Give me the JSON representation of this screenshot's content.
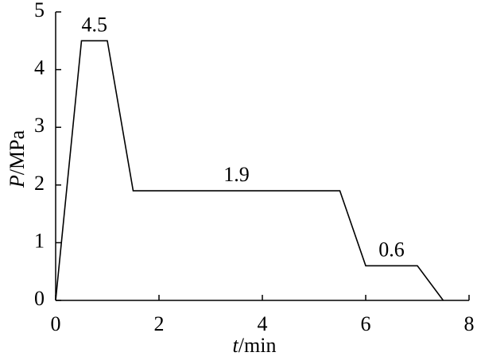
{
  "chart_data": {
    "type": "line",
    "x": [
      0,
      0.5,
      1,
      1.5,
      5.5,
      6,
      7,
      7.5
    ],
    "series": [
      {
        "values": [
          0,
          4.5,
          4.5,
          1.9,
          1.9,
          0.6,
          0.6,
          0
        ],
        "color": "#000000"
      }
    ],
    "xlim": [
      0,
      8
    ],
    "xticks": [
      0,
      2,
      4,
      6,
      8
    ],
    "ylim": [
      0,
      5
    ],
    "yticks": [
      0,
      1,
      2,
      3,
      4,
      5
    ],
    "xlabel": {
      "symbol": "t",
      "unit": "/min"
    },
    "ylabel": {
      "symbol": "P",
      "unit": "/MPa"
    },
    "data_labels": true,
    "grid": false
  }
}
